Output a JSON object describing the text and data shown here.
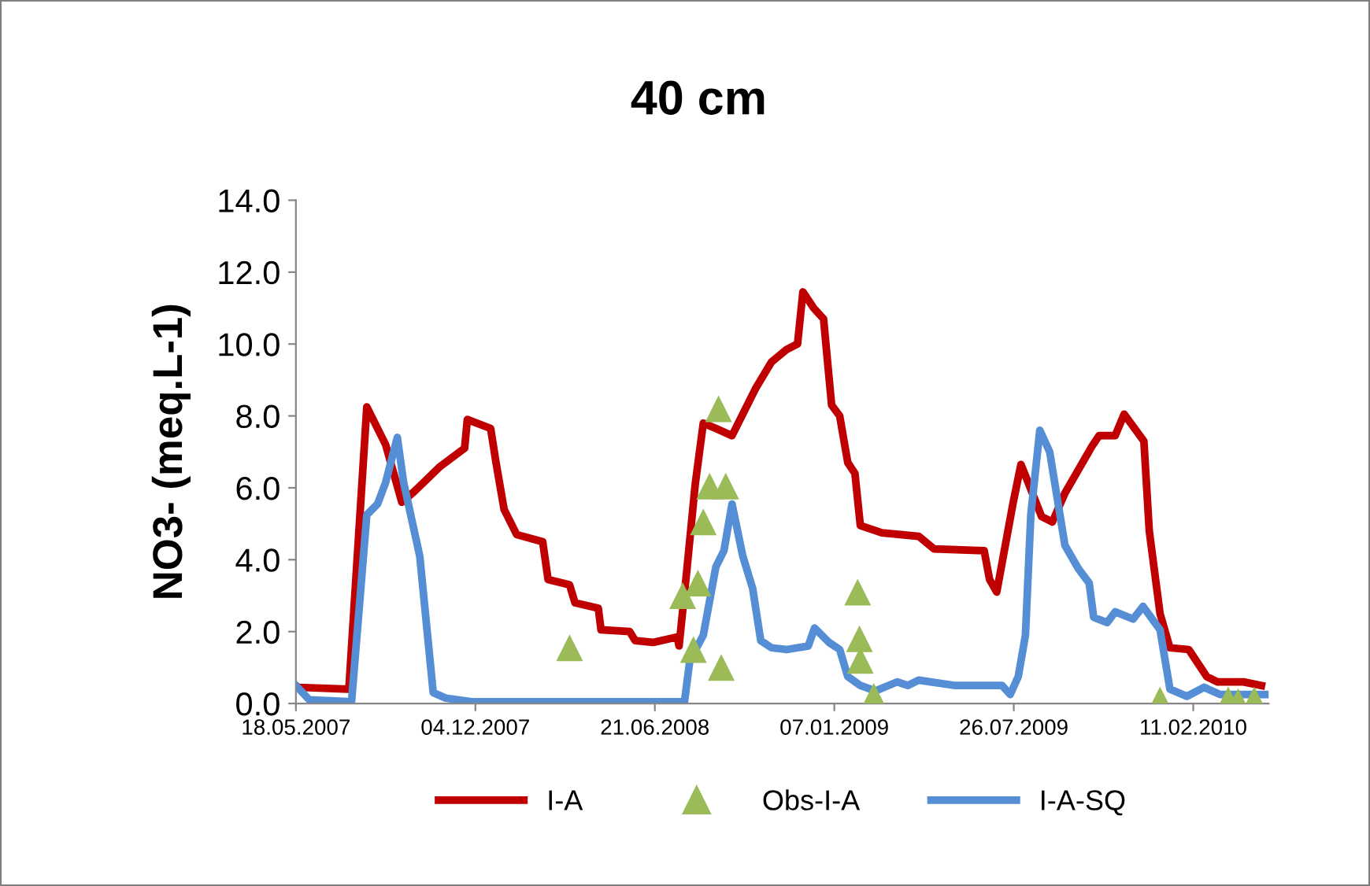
{
  "chart_data": {
    "type": "line",
    "title": "40 cm",
    "ylabel": "NO3- (meq.L-1)",
    "xlim": [
      "2007-05-18",
      "2010-05-06"
    ],
    "xticks": [
      {
        "value": "2007-05-18",
        "label": "18.05.2007"
      },
      {
        "value": "2007-12-04",
        "label": "04.12.2007"
      },
      {
        "value": "2008-06-21",
        "label": "21.06.2008"
      },
      {
        "value": "2009-01-07",
        "label": "07.01.2009"
      },
      {
        "value": "2009-07-26",
        "label": "26.07.2009"
      },
      {
        "value": "2010-02-11",
        "label": "11.02.2010"
      }
    ],
    "ylim": [
      0,
      14
    ],
    "yticks": [
      {
        "value": 0,
        "label": "0.0"
      },
      {
        "value": 2,
        "label": "2.0"
      },
      {
        "value": 4,
        "label": "4.0"
      },
      {
        "value": 6,
        "label": "6.0"
      },
      {
        "value": 8,
        "label": "8.0"
      },
      {
        "value": 10,
        "label": "10.0"
      },
      {
        "value": 12,
        "label": "12.0"
      },
      {
        "value": 14,
        "label": "14.0"
      }
    ],
    "grid": false,
    "legend": "bottom",
    "series": [
      {
        "name": "I-A",
        "color": "#c00000",
        "marker": "none",
        "line_style": "solid",
        "x": [
          "2007-05-18",
          "2007-05-21",
          "2007-07-16",
          "2007-08-05",
          "2007-08-26",
          "2007-09-13",
          "2007-09-27",
          "2007-10-26",
          "2007-11-22",
          "2007-11-25",
          "2007-12-21",
          "2007-12-27",
          "2008-01-05",
          "2008-01-19",
          "2008-02-17",
          "2008-02-23",
          "2008-03-18",
          "2008-03-24",
          "2008-04-19",
          "2008-04-22",
          "2008-05-24",
          "2008-05-30",
          "2008-06-19",
          "2008-07-16",
          "2008-07-18",
          "2008-07-27",
          "2008-08-05",
          "2008-08-14",
          "2008-08-28",
          "2008-09-15",
          "2008-10-11",
          "2008-10-29",
          "2008-11-15",
          "2008-11-27",
          "2008-12-03",
          "2008-12-15",
          "2008-12-26",
          "2009-01-04",
          "2009-01-13",
          "2009-01-22",
          "2009-01-30",
          "2009-02-05",
          "2009-03-01",
          "2009-04-11",
          "2009-04-28",
          "2009-06-23",
          "2009-06-29",
          "2009-07-07",
          "2009-07-25",
          "2009-08-03",
          "2009-08-11",
          "2009-08-26",
          "2009-09-07",
          "2009-09-21",
          "2009-10-21",
          "2009-10-29",
          "2009-11-16",
          "2009-11-26",
          "2009-12-18",
          "2009-12-24",
          "2010-01-05",
          "2010-01-16",
          "2010-02-06",
          "2010-02-26",
          "2010-03-10",
          "2010-04-08",
          "2010-04-28"
        ],
        "values": [
          0.5,
          0.45,
          0.4,
          8.25,
          7.2,
          5.6,
          5.9,
          6.6,
          7.1,
          7.9,
          7.65,
          6.7,
          5.4,
          4.7,
          4.5,
          3.45,
          3.3,
          2.8,
          2.65,
          2.05,
          2.0,
          1.75,
          1.7,
          1.85,
          1.6,
          3.8,
          6.1,
          7.8,
          7.65,
          7.45,
          8.75,
          9.5,
          9.85,
          10.0,
          11.45,
          11.0,
          10.7,
          8.3,
          8.0,
          6.7,
          6.4,
          4.95,
          4.75,
          4.65,
          4.3,
          4.25,
          3.45,
          3.1,
          5.55,
          6.65,
          6.15,
          5.2,
          5.05,
          5.85,
          7.15,
          7.45,
          7.45,
          8.05,
          7.3,
          4.8,
          2.5,
          1.55,
          1.5,
          0.75,
          0.6,
          0.6,
          0.5
        ]
      },
      {
        "name": "Obs-I-A",
        "type": "scatter",
        "color": "#9bbb59",
        "marker": "triangle",
        "x": [
          "2008-03-18",
          "2008-07-22",
          "2008-08-03",
          "2008-08-08",
          "2008-08-14",
          "2008-08-21",
          "2008-08-31",
          "2008-09-03",
          "2008-09-08",
          "2009-02-02",
          "2009-02-04",
          "2009-02-05",
          "2009-02-20",
          "2010-01-05",
          "2010-03-22",
          "2010-04-02",
          "2010-04-20"
        ],
        "values": [
          1.55,
          3.0,
          1.5,
          3.35,
          5.05,
          6.05,
          8.2,
          1.0,
          6.05,
          3.1,
          1.8,
          1.2,
          0.2,
          0.1,
          0.1,
          0.05,
          0.1
        ]
      },
      {
        "name": "I-A-SQ",
        "color": "#558ed5",
        "marker": "none",
        "line_style": "solid",
        "x": [
          "2007-05-18",
          "2007-06-02",
          "2007-07-19",
          "2007-08-05",
          "2007-08-17",
          "2007-08-26",
          "2007-09-08",
          "2007-09-15",
          "2007-10-03",
          "2007-10-18",
          "2007-11-01",
          "2007-11-30",
          "2008-07-24",
          "2008-07-30",
          "2008-08-14",
          "2008-08-28",
          "2008-09-06",
          "2008-09-15",
          "2008-09-27",
          "2008-10-08",
          "2008-10-17",
          "2008-10-29",
          "2008-11-15",
          "2008-12-09",
          "2008-12-16",
          "2009-01-01",
          "2009-01-13",
          "2009-01-22",
          "2009-02-05",
          "2009-02-22",
          "2009-03-18",
          "2009-03-30",
          "2009-04-11",
          "2009-05-22",
          "2009-07-13",
          "2009-07-22",
          "2009-07-31",
          "2009-08-08",
          "2009-08-14",
          "2009-08-24",
          "2009-09-04",
          "2009-09-21",
          "2009-10-06",
          "2009-10-18",
          "2009-10-23",
          "2009-11-07",
          "2009-11-16",
          "2009-12-06",
          "2009-12-17",
          "2010-01-05",
          "2010-01-16",
          "2010-02-04",
          "2010-02-23",
          "2010-03-13",
          "2010-05-04"
        ],
        "values": [
          0.5,
          0.1,
          0.05,
          5.25,
          5.55,
          6.15,
          7.4,
          6.15,
          4.1,
          0.3,
          0.15,
          0.05,
          0.05,
          1.2,
          1.9,
          3.8,
          4.25,
          5.55,
          4.1,
          3.2,
          1.75,
          1.55,
          1.5,
          1.6,
          2.1,
          1.7,
          1.5,
          0.75,
          0.5,
          0.35,
          0.6,
          0.5,
          0.65,
          0.5,
          0.5,
          0.25,
          0.75,
          1.9,
          5.25,
          7.6,
          7.0,
          4.4,
          3.75,
          3.35,
          2.4,
          2.25,
          2.55,
          2.35,
          2.7,
          2.05,
          0.4,
          0.2,
          0.45,
          0.25,
          0.25
        ]
      }
    ]
  }
}
